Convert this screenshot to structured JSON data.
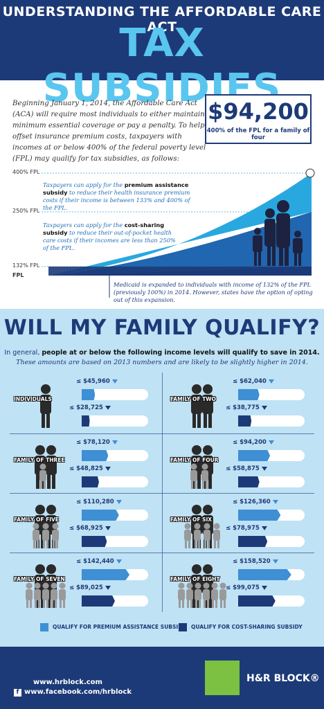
{
  "header": {
    "line1": "UNDERSTANDING THE AFFORDABLE CARE ACT",
    "line2": "TAX SUBSIDIES"
  },
  "intro": {
    "text": "Beginning January 1, 2014, the Affordable Care Act (ACA) will require most individuals to either maintain minimum essential coverage or pay a penalty. To help offset insurance premium costs, taxpayers with incomes at or below 400% of the federal poverty level (FPL) may qualify for tax subsidies, as follows:",
    "amount": "$94,200",
    "amount_caption": "400% of the FPL for a family of four"
  },
  "fpl": {
    "labels": [
      "400% FPL",
      "250% FPL",
      "132% FPL",
      "FPL"
    ],
    "premium_note_pre": "Taxpayers can apply for the ",
    "premium_note_bold": "premium assistance subsidy",
    "premium_note_post": " to reduce their health insurance premium costs if their income is between 133% and 400% of the FPL.",
    "cost_note_pre": "Taxpayers can apply for the ",
    "cost_note_bold": "cost-sharing subsidy",
    "cost_note_post": " to reduce their out-of-pocket health care costs if their incomes are less than 250% of the FPL.",
    "medicaid_note": "Medicaid is expanded to individuals with income of 132% of the FPL (previously 100%) in 2014. However, states have the option of opting out of this expansion.",
    "colors": {
      "light": "#29a8e0",
      "mid": "#2166b0",
      "dark": "#1d3a78"
    }
  },
  "qualify": {
    "title": "WILL MY FAMILY QUALIFY?",
    "sub1_pre": "In general, ",
    "sub1_bold": "people at or below the following income levels will qualify to save in 2014.",
    "sub2": "These amounts are based on 2013 numbers and are likely to be slightly higher in 2014.",
    "families": [
      {
        "label": "INDIVIDUALS",
        "premium": "≤ $45,960",
        "cost": "≤ $28,725",
        "people": 1,
        "premium_fill": 0.2,
        "cost_fill": 0.12
      },
      {
        "label": "FAMILY OF TWO",
        "premium": "≤ $62,040",
        "cost": "≤ $38,775",
        "people": 2,
        "premium_fill": 0.32,
        "cost_fill": 0.2
      },
      {
        "label": "FAMILY OF THREE",
        "premium": "≤ $78,120",
        "cost": "≤ $48,825",
        "people": 3,
        "premium_fill": 0.4,
        "cost_fill": 0.26
      },
      {
        "label": "FAMILY OF FOUR",
        "premium": "≤ $94,200",
        "cost": "≤ $58,875",
        "people": 4,
        "premium_fill": 0.48,
        "cost_fill": 0.32
      },
      {
        "label": "FAMILY OF FIVE",
        "premium": "≤ $110,280",
        "cost": "≤ $68,925",
        "people": 5,
        "premium_fill": 0.56,
        "cost_fill": 0.38
      },
      {
        "label": "FAMILY OF SIX",
        "premium": "≤ $126,360",
        "cost": "≤ $78,975",
        "people": 6,
        "premium_fill": 0.64,
        "cost_fill": 0.44
      },
      {
        "label": "FAMILY OF SEVEN",
        "premium": "≤ $142,440",
        "cost": "≤ $89,025",
        "people": 7,
        "premium_fill": 0.72,
        "cost_fill": 0.5
      },
      {
        "label": "FAMILY OF EIGHT",
        "premium": "≤ $158,520",
        "cost": "≤ $99,075",
        "people": 8,
        "premium_fill": 0.8,
        "cost_fill": 0.56
      }
    ],
    "legend_premium": "QUALIFY FOR PREMIUM ASSISTANCE SUBSIDY",
    "legend_cost": "QUALIFY FOR COST-SHARING SUBSIDY",
    "colors": {
      "premium": "#3e8fd4",
      "cost": "#1d3a78",
      "adult": "#2a2a2a",
      "child": "#9a9a9a"
    }
  },
  "footer": {
    "website": "www.hrblock.com",
    "facebook": "www.facebook.com/hrblock",
    "brand": "H&R BLOCK®"
  }
}
